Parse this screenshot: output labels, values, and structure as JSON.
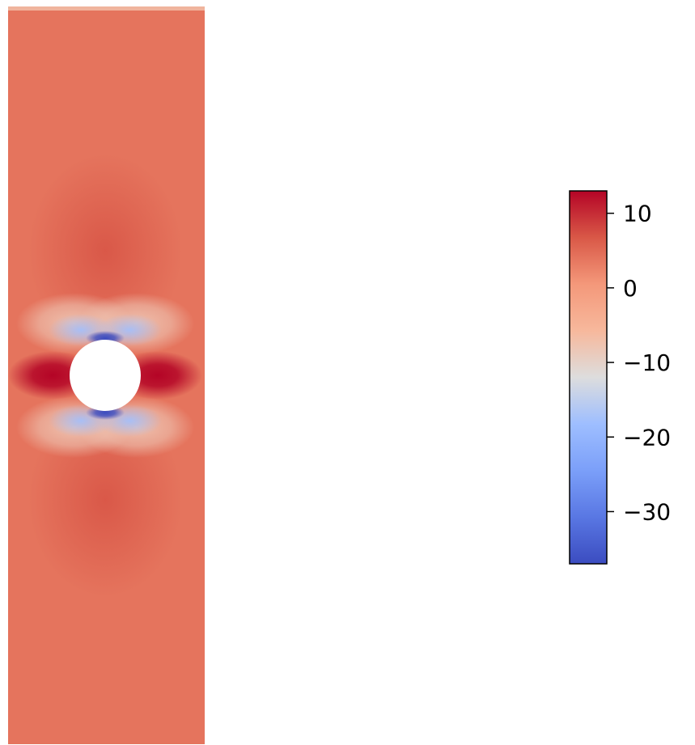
{
  "chart_data": {
    "type": "heatmap",
    "title": "",
    "xlabel": "",
    "ylabel": "",
    "field": {
      "description_colors": "diverging coolwarm field on a tall plate with a central circular hole",
      "far_field_value": 4,
      "horizontal_peak_value": 13,
      "vertical_min_value": -37,
      "lobes_above_below_value": 7
    },
    "colorbar": {
      "colormap": "coolwarm",
      "vmin": -37,
      "vmax": 13,
      "ticks": [
        10,
        0,
        -10,
        -20,
        -30
      ],
      "tick_labels": [
        "10",
        "0",
        "−10",
        "−20",
        "−30"
      ],
      "orientation": "vertical",
      "position": "right"
    },
    "colors": {
      "cold": "#3b4cc0",
      "neutral": "#dddddd",
      "warm": "#b40426",
      "background": "#ffffff"
    }
  }
}
